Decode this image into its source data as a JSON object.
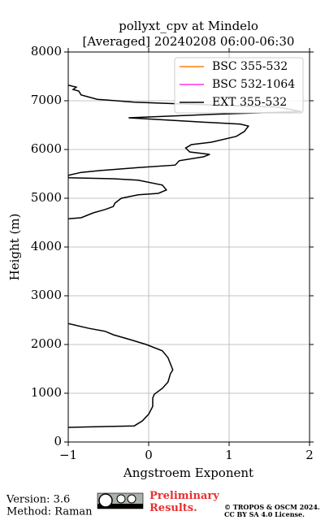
{
  "chart_data": {
    "type": "line",
    "title": "pollyxt_cpv at Mindelo",
    "subtitle": "[Averaged] 20240208 06:00-06:30",
    "x_label": "Angstroem Exponent",
    "y_label": "Height (m)",
    "y": [
      300,
      330,
      430,
      570,
      730,
      900,
      980,
      1100,
      1230,
      1400,
      1480,
      1730,
      1870,
      2000,
      2100,
      2200,
      2270,
      2330,
      2430,
      3500,
      4580,
      4600,
      4700,
      4770,
      4830,
      4900,
      5000,
      5070,
      5100,
      5170,
      5270,
      5370,
      5400,
      5420,
      5470,
      5530,
      5570,
      5630,
      5680,
      5770,
      5850,
      5900,
      5950,
      6030,
      6100,
      6150,
      6270,
      6370,
      6480,
      6520,
      6570,
      6650,
      6720,
      6780,
      6870,
      6900,
      6970,
      7030,
      7120,
      7200,
      7230,
      7280,
      7320
    ],
    "series": [
      {
        "name": "BSC 355-532",
        "color": "#ff7f0e",
        "values": [
          null,
          null,
          null,
          null,
          null,
          null,
          null,
          null,
          null,
          null,
          null,
          null,
          null,
          null,
          null,
          null,
          null,
          null,
          null,
          null,
          null,
          null,
          null,
          null,
          null,
          null,
          null,
          null,
          null,
          null,
          null,
          null,
          null,
          null,
          null,
          null,
          null,
          null,
          null,
          null,
          null,
          null,
          null,
          null,
          null,
          null,
          null,
          null,
          null,
          null,
          null,
          null,
          null,
          null,
          null,
          null,
          null,
          null,
          null,
          null,
          null,
          null,
          null
        ]
      },
      {
        "name": "BSC 532-1064",
        "color": "#ff33ee",
        "values": [
          null,
          null,
          null,
          null,
          null,
          null,
          null,
          null,
          null,
          null,
          null,
          null,
          null,
          null,
          null,
          null,
          null,
          null,
          null,
          null,
          null,
          null,
          null,
          null,
          null,
          null,
          null,
          null,
          null,
          null,
          null,
          null,
          null,
          null,
          null,
          null,
          null,
          null,
          null,
          null,
          null,
          null,
          null,
          null,
          null,
          null,
          null,
          null,
          null,
          null,
          null,
          null,
          null,
          null,
          null,
          null,
          null,
          null,
          null,
          null,
          null,
          null,
          null
        ]
      },
      {
        "name": "EXT 355-532",
        "color": "#000000",
        "values": [
          -1.0,
          -0.18,
          -0.08,
          0.0,
          0.05,
          0.05,
          0.07,
          0.17,
          0.24,
          0.27,
          0.3,
          0.24,
          0.17,
          -0.03,
          -0.23,
          -0.44,
          -0.54,
          -0.74,
          -1.0,
          null,
          -1.0,
          -0.84,
          -0.69,
          -0.54,
          -0.44,
          -0.42,
          -0.34,
          -0.13,
          0.12,
          0.22,
          0.17,
          -0.13,
          -0.44,
          -1.0,
          -1.0,
          -0.84,
          -0.59,
          -0.13,
          0.33,
          0.38,
          0.68,
          0.76,
          0.51,
          0.46,
          0.53,
          0.78,
          1.09,
          1.19,
          1.24,
          1.14,
          0.58,
          -0.25,
          0.78,
          1.9,
          1.6,
          0.99,
          -0.18,
          -0.64,
          -0.84,
          -0.87,
          -0.94,
          -0.9,
          -1.0
        ]
      }
    ],
    "xlim": [
      -1,
      2
    ],
    "xticks": [
      {
        "value": -1,
        "label": "−1"
      },
      0,
      1,
      2
    ],
    "ylim": [
      0,
      8000
    ],
    "yticks": [
      0,
      1000,
      2000,
      3000,
      4000,
      5000,
      6000,
      7000,
      8000
    ],
    "grid": true,
    "legend": "upper right"
  },
  "footer": {
    "version": "Version: 3.6",
    "method": "Method: Raman",
    "status": "Preliminary Results.",
    "copyright": "© TROPOS & OSCM 2024.",
    "license": "CC BY SA 4.0 License."
  }
}
